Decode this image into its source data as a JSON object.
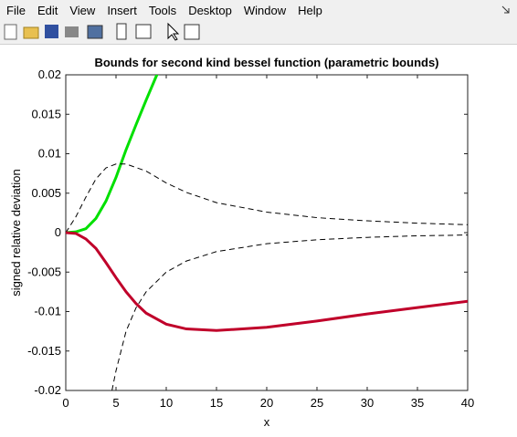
{
  "menu": [
    "File",
    "Edit",
    "View",
    "Insert",
    "Tools",
    "Desktop",
    "Window",
    "Help"
  ],
  "chart_data": {
    "type": "line",
    "title": "Bounds for second kind bessel function (parametric bounds)",
    "xlabel": "x",
    "ylabel": "signed relative deviation",
    "xlim": [
      0,
      40
    ],
    "ylim": [
      -0.02,
      0.02
    ],
    "xticks": [
      0,
      5,
      10,
      15,
      20,
      25,
      30,
      35,
      40
    ],
    "yticks": [
      -0.02,
      -0.015,
      -0.01,
      -0.005,
      0,
      0.005,
      0.01,
      0.015,
      0.02
    ],
    "grid": false,
    "series": [
      {
        "color": "#00e000",
        "style": "solid",
        "width": 3,
        "x": [
          0,
          1,
          2,
          3,
          4,
          5,
          6,
          7,
          8,
          9,
          9.6
        ],
        "values": [
          0,
          0.0001,
          0.0005,
          0.0018,
          0.004,
          0.007,
          0.0105,
          0.0137,
          0.0168,
          0.0198,
          0.0215
        ]
      },
      {
        "color": "#000000",
        "style": "dashed",
        "width": 1,
        "x": [
          0,
          1,
          2,
          3,
          4,
          5,
          6,
          8,
          10,
          12,
          15,
          20,
          25,
          30,
          35,
          40
        ],
        "values": [
          0,
          0.002,
          0.0045,
          0.0068,
          0.0082,
          0.0087,
          0.0087,
          0.0078,
          0.0063,
          0.0051,
          0.0038,
          0.0026,
          0.0019,
          0.0015,
          0.0012,
          0.001
        ]
      },
      {
        "color": "#c0002a",
        "style": "solid",
        "width": 3,
        "x": [
          0,
          1,
          2,
          3,
          4,
          5,
          6,
          7,
          8,
          10,
          12,
          15,
          20,
          25,
          30,
          35,
          40
        ],
        "values": [
          0,
          -0.0001,
          -0.0008,
          -0.002,
          -0.0038,
          -0.0057,
          -0.0075,
          -0.009,
          -0.0102,
          -0.0116,
          -0.0122,
          -0.0124,
          -0.012,
          -0.0112,
          -0.0103,
          -0.0095,
          -0.0087
        ]
      },
      {
        "color": "#000000",
        "style": "dashed",
        "width": 1,
        "x": [
          4.6,
          5,
          6,
          7,
          8,
          10,
          12,
          15,
          20,
          25,
          30,
          35,
          40
        ],
        "values": [
          -0.02,
          -0.0175,
          -0.0125,
          -0.0095,
          -0.0075,
          -0.005,
          -0.0036,
          -0.0024,
          -0.0014,
          -0.0009,
          -0.0006,
          -0.0004,
          -0.0003
        ]
      }
    ]
  }
}
